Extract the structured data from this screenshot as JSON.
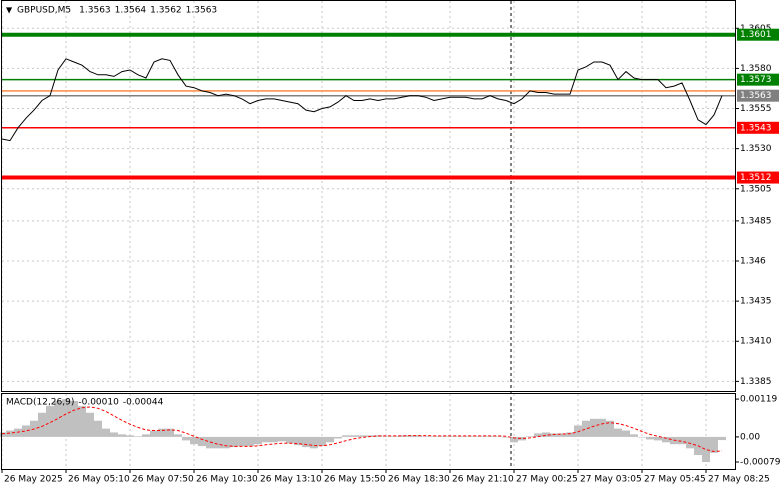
{
  "chart_data": {
    "type": "line",
    "title": "GBPUSD,M5",
    "ohlc": [
      1.3563,
      1.3564,
      1.3562,
      1.3563
    ],
    "indicator": "MACD(12,26,9)",
    "indicator_values": [
      "-0.00010",
      "-0.00044"
    ],
    "grid": true,
    "x": [
      0,
      4,
      8,
      12,
      16,
      20,
      24,
      28,
      32,
      36,
      40,
      44,
      48,
      52,
      56,
      60,
      64,
      68,
      72,
      76,
      80,
      84,
      88,
      92,
      96,
      100,
      104,
      108,
      112,
      116,
      120,
      124,
      128,
      132,
      136,
      140,
      144,
      148,
      152,
      156,
      160,
      164,
      168,
      172,
      176,
      180,
      184,
      188,
      192,
      196,
      200,
      204,
      208,
      212,
      216,
      220,
      224,
      228,
      232,
      236,
      240,
      244,
      248,
      252,
      256,
      260,
      264,
      268,
      272,
      276,
      280,
      284,
      288,
      292,
      296,
      300,
      304,
      308,
      312,
      316,
      320,
      324,
      328,
      332,
      336,
      340,
      344,
      348,
      352,
      356,
      360
    ],
    "xlim": [
      0,
      367
    ],
    "xticks": [
      {
        "value": 0,
        "label": "26 May 2025"
      },
      {
        "value": 32,
        "label": "26 May 05:10"
      },
      {
        "value": 64,
        "label": "26 May 07:50"
      },
      {
        "value": 96,
        "label": "26 May 10:30"
      },
      {
        "value": 128,
        "label": "26 May 13:10"
      },
      {
        "value": 160,
        "label": "26 May 15:50"
      },
      {
        "value": 192,
        "label": "26 May 18:30"
      },
      {
        "value": 224,
        "label": "26 May 21:10"
      },
      {
        "value": 256,
        "label": "27 May 00:25"
      },
      {
        "value": 288,
        "label": "27 May 03:05"
      },
      {
        "value": 320,
        "label": "27 May 05:45"
      },
      {
        "value": 352,
        "label": "27 May 08:25"
      }
    ],
    "separator_x": 254.5,
    "ylim": [
      1.3379,
      1.3622
    ],
    "yticks": [
      1.3385,
      {
        "value": 1.341,
        "label": "1.3410"
      },
      1.3435,
      1.346,
      1.3485,
      1.3505,
      {
        "value": 1.353,
        "label": "1.3530"
      },
      1.3555,
      {
        "value": 1.358,
        "label": "1.3580"
      },
      1.3605
    ],
    "y2lim": [
      -0.00101,
      0.00135
    ],
    "y2ticks": [
      -0.00079,
      {
        "value": 0,
        "label": "0.00"
      },
      0.00119
    ],
    "levels": [
      {
        "value": 1.3601,
        "color": "#008000",
        "thick": true,
        "show_label": true
      },
      {
        "value": 1.3573,
        "color": "#008000",
        "thick": false,
        "show_label": true
      },
      {
        "value": 1.3566,
        "color": "#ff8c40",
        "thick": false,
        "show_label": false
      },
      {
        "value": 1.3563,
        "color": "#808080",
        "thick": false,
        "show_label": true
      },
      {
        "value": 1.3543,
        "color": "#ff0000",
        "thick": false,
        "show_label": true
      },
      {
        "value": 1.3512,
        "color": "#ff0000",
        "thick": true,
        "show_label": true
      }
    ],
    "series": [
      {
        "color": "#000000",
        "values": [
          1.3536,
          1.3535,
          1.3543,
          1.3549,
          1.3554,
          1.356,
          1.3563,
          1.3579,
          1.3586,
          1.3584,
          1.3582,
          1.3578,
          1.3576,
          1.3576,
          1.3575,
          1.3578,
          1.3579,
          1.3576,
          1.3574,
          1.3584,
          1.3586,
          1.3585,
          1.3576,
          1.3569,
          1.3568,
          1.3566,
          1.3565,
          1.3563,
          1.3564,
          1.3563,
          1.3561,
          1.3558,
          1.356,
          1.3561,
          1.3561,
          1.356,
          1.3559,
          1.3558,
          1.3554,
          1.3553,
          1.3555,
          1.3556,
          1.3559,
          1.3563,
          1.356,
          1.356,
          1.3561,
          1.356,
          1.3561,
          1.3561,
          1.3562,
          1.3563,
          1.3563,
          1.3562,
          1.356,
          1.3561,
          1.3562,
          1.3562,
          1.3562,
          1.3561,
          1.3561,
          1.3563,
          1.3561,
          1.356,
          1.3558,
          1.3561,
          1.3566,
          1.3565,
          1.3565,
          1.3564,
          1.3564,
          1.3564,
          1.3579,
          1.3581,
          1.3584,
          1.3584,
          1.3582,
          1.3573,
          1.3578,
          1.3574,
          1.3573,
          1.3573,
          1.3573,
          1.3568,
          1.3569,
          1.3571,
          1.356,
          1.3548,
          1.3545,
          1.3551,
          1.3563
        ]
      },
      {
        "axis": "y2",
        "style": "histogram",
        "color": "#c0c0c0",
        "values": [
          0.00014,
          0.0002,
          0.00026,
          0.00036,
          0.00051,
          0.00076,
          0.00097,
          0.00113,
          0.00119,
          0.00113,
          0.00097,
          0.00076,
          0.00051,
          0.00026,
          0.00014,
          8e-05,
          5e-05,
          2e-05,
          8e-05,
          0.0002,
          0.00026,
          0.00026,
          8e-05,
          -0.00011,
          -0.00023,
          -0.00029,
          -0.00036,
          -0.00036,
          -0.00036,
          -0.00032,
          -0.00029,
          -0.00029,
          -0.00023,
          -0.00017,
          -0.00017,
          -0.00014,
          -0.0002,
          -0.00026,
          -0.00032,
          -0.00036,
          -0.00029,
          -0.00017,
          -5e-05,
          5e-05,
          5e-05,
          5e-05,
          5e-05,
          5e-05,
          2e-05,
          2e-05,
          5e-05,
          5e-05,
          5e-05,
          2e-05,
          2e-05,
          2e-05,
          2e-05,
          2e-05,
          2e-05,
          2e-05,
          2e-05,
          2e-05,
          2e-05,
          -2e-05,
          -0.00017,
          -0.00011,
          2e-05,
          0.00011,
          0.00014,
          0.00011,
          0.00011,
          0.00014,
          0.00036,
          0.00051,
          0.00057,
          0.00057,
          0.00051,
          0.00026,
          0.0002,
          8e-05,
          -2e-05,
          -8e-05,
          -0.00011,
          -0.00017,
          -0.00023,
          -0.00023,
          -0.00036,
          -0.00057,
          -0.00079,
          -0.0005,
          -0.0001
        ]
      },
      {
        "axis": "y2",
        "style": "dashed",
        "color": "#ff0000",
        "values": [
          0.0001,
          0.00012,
          0.00015,
          0.00019,
          0.00025,
          0.00033,
          0.00045,
          0.00058,
          0.00072,
          0.00084,
          0.00092,
          0.00094,
          0.0009,
          0.0008,
          0.00066,
          0.00052,
          0.0004,
          0.0003,
          0.00022,
          0.0002,
          0.0002,
          0.00022,
          0.0002,
          0.00012,
          2e-05,
          -8e-05,
          -0.00016,
          -0.00023,
          -0.00028,
          -0.0003,
          -0.0003,
          -0.0003,
          -0.00028,
          -0.00025,
          -0.00022,
          -0.0002,
          -0.0002,
          -0.00021,
          -0.00024,
          -0.00027,
          -0.00028,
          -0.00025,
          -0.00019,
          -0.00012,
          -6e-05,
          -2e-05,
          1e-05,
          3e-05,
          3e-05,
          3e-05,
          3e-05,
          4e-05,
          4e-05,
          4e-05,
          3e-05,
          3e-05,
          3e-05,
          3e-05,
          3e-05,
          3e-05,
          3e-05,
          3e-05,
          3e-05,
          2e-05,
          -3e-05,
          -5e-05,
          -3e-05,
          1e-05,
          5e-05,
          8e-05,
          9e-05,
          0.0001,
          0.00016,
          0.00025,
          0.00034,
          0.00041,
          0.00045,
          0.00042,
          0.00036,
          0.00027,
          0.00017,
          8e-05,
          2e-05,
          -4e-05,
          -0.0001,
          -0.00014,
          -0.0002,
          -0.00028,
          -0.0004,
          -0.00046,
          -0.00044
        ]
      }
    ]
  }
}
